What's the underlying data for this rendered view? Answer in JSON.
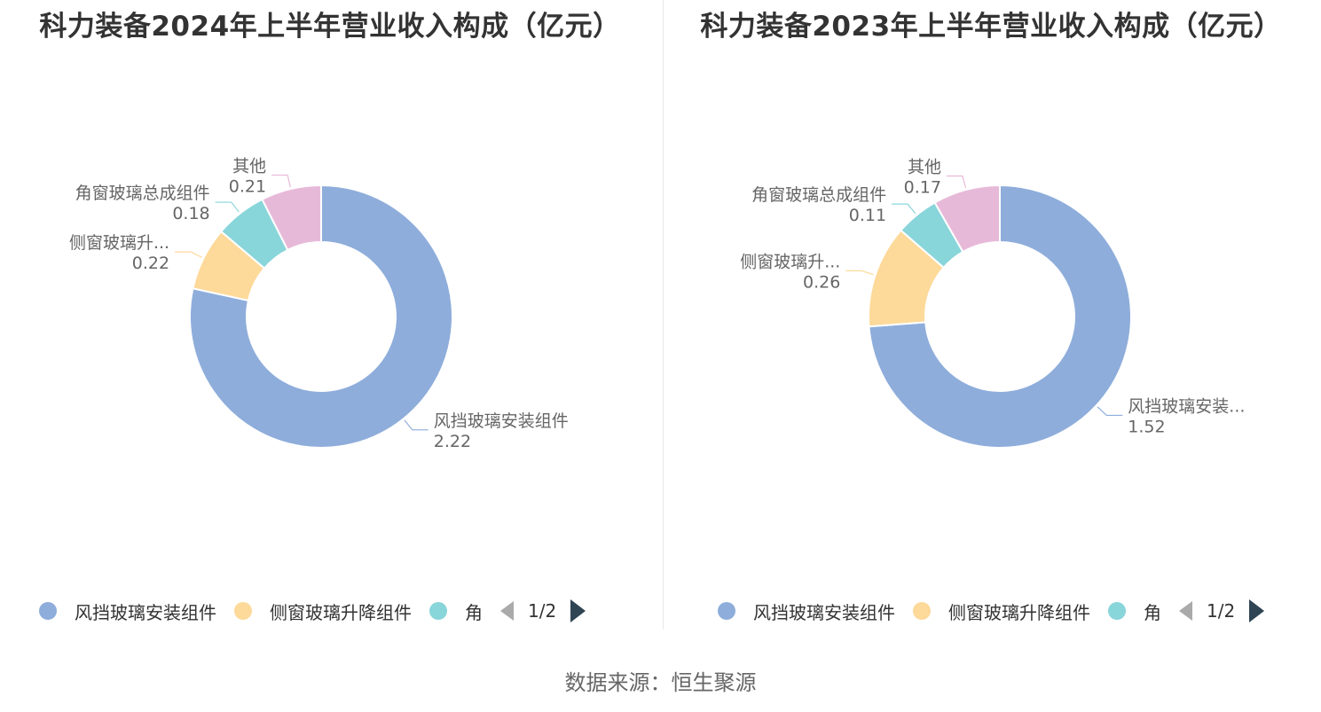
{
  "source_label": "数据来源：恒生聚源",
  "colors": [
    "#8eaddb",
    "#fdd99a",
    "#88d5da",
    "#e7b9d9"
  ],
  "chart_data": [
    {
      "type": "pie",
      "title": "科力装备2024年上半年营业收入构成（亿元）",
      "slices": [
        {
          "name": "风挡玻璃安装组件",
          "value": 2.22,
          "label_name": "风挡玻璃安装组件",
          "label_value": "2.22"
        },
        {
          "name": "侧窗玻璃升降组件",
          "value": 0.22,
          "label_name": "侧窗玻璃升...",
          "label_value": "0.22"
        },
        {
          "name": "角窗玻璃总成组件",
          "value": 0.18,
          "label_name": "角窗玻璃总成组件",
          "label_value": "0.18"
        },
        {
          "name": "其他",
          "value": 0.21,
          "label_name": "其他",
          "label_value": "0.21"
        }
      ],
      "legend": {
        "items": [
          "风挡玻璃安装组件",
          "侧窗玻璃升降组件",
          "角"
        ],
        "page": "1/2",
        "placement": "bottom"
      }
    },
    {
      "type": "pie",
      "title": "科力装备2023年上半年营业收入构成（亿元）",
      "slices": [
        {
          "name": "风挡玻璃安装组件",
          "value": 1.52,
          "label_name": "风挡玻璃安装...",
          "label_value": "1.52"
        },
        {
          "name": "侧窗玻璃升降组件",
          "value": 0.26,
          "label_name": "侧窗玻璃升...",
          "label_value": "0.26"
        },
        {
          "name": "角窗玻璃总成组件",
          "value": 0.11,
          "label_name": "角窗玻璃总成组件",
          "label_value": "0.11"
        },
        {
          "name": "其他",
          "value": 0.17,
          "label_name": "其他",
          "label_value": "0.17"
        }
      ],
      "legend": {
        "items": [
          "风挡玻璃安装组件",
          "侧窗玻璃升降组件",
          "角"
        ],
        "page": "1/2",
        "placement": "bottom"
      }
    }
  ]
}
